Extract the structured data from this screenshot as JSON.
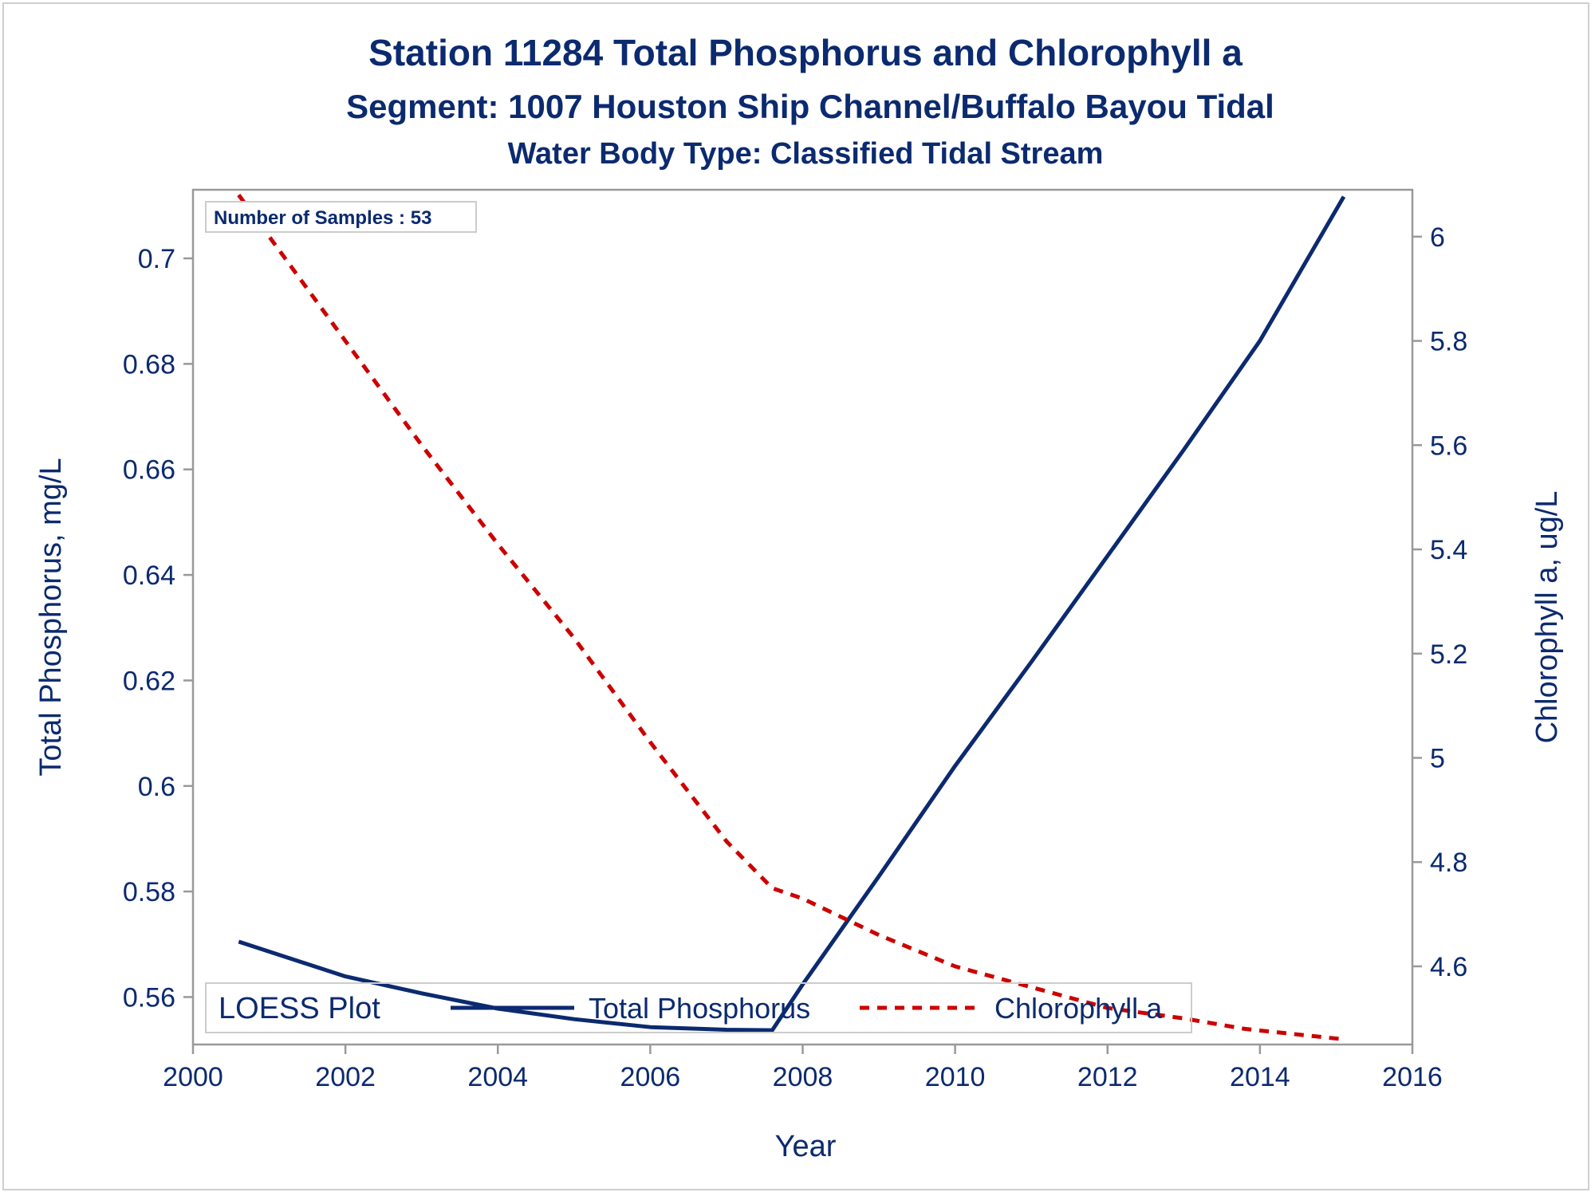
{
  "titles": {
    "line1": "Station 11284   Total Phosphorus and Chlorophyll a",
    "line2": "Segment: 1007  Houston Ship Channel/Buffalo Bayou Tidal",
    "line3": "Water Body Type: Classified Tidal Stream"
  },
  "inset": {
    "label": "Number of Samples : 53"
  },
  "legend": {
    "title": "LOESS Plot",
    "entries": [
      "Total Phosphorus",
      "Chlorophyll a"
    ]
  },
  "colors": {
    "text": "#0b2a6f",
    "phosphorus": "#0b2a6f",
    "chlorophyll": "#cc0000",
    "axis": "#999999"
  },
  "chart_data": {
    "type": "line",
    "xlabel": "Year",
    "ylabel": "Total Phosphorus, mg/L",
    "y2label": "Chlorophyll a, ug/L",
    "xlim": [
      2000,
      2016
    ],
    "ylim": [
      0.551,
      0.713
    ],
    "y2lim": [
      4.45,
      6.09
    ],
    "xticks": [
      "2000",
      "2002",
      "2004",
      "2006",
      "2008",
      "2010",
      "2012",
      "2014",
      "2016"
    ],
    "yticks": [
      "0.56",
      "0.58",
      "0.6",
      "0.62",
      "0.64",
      "0.66",
      "0.68",
      "0.7"
    ],
    "y2ticks": [
      "4.6",
      "4.8",
      "5",
      "5.2",
      "5.4",
      "5.6",
      "5.8",
      "6"
    ],
    "grid": false,
    "legend_position": "bottom-inside",
    "series": [
      {
        "name": "Total Phosphorus",
        "axis": "left",
        "style": "solid",
        "x": [
          2000.6,
          2002.0,
          2003.0,
          2004.0,
          2005.0,
          2006.0,
          2007.0,
          2007.6,
          2008.0,
          2009.0,
          2010.0,
          2011.0,
          2012.0,
          2013.0,
          2014.0,
          2015.1
        ],
        "values": [
          0.5705,
          0.5639,
          0.5607,
          0.5578,
          0.5558,
          0.5543,
          0.5538,
          0.5537,
          0.5624,
          0.5829,
          0.6038,
          0.6235,
          0.6436,
          0.6637,
          0.6844,
          0.7117
        ]
      },
      {
        "name": "Chlorophyll a",
        "axis": "right",
        "style": "dashed",
        "x": [
          2000.6,
          2001.0,
          2002.0,
          2003.0,
          2004.0,
          2005.0,
          2006.0,
          2007.0,
          2007.6,
          2008.0,
          2009.0,
          2010.0,
          2011.0,
          2012.0,
          2013.0,
          2013.8,
          2015.1
        ],
        "values": [
          6.08,
          6.0,
          5.8,
          5.6,
          5.41,
          5.23,
          5.03,
          4.84,
          4.75,
          4.73,
          4.66,
          4.6,
          4.56,
          4.52,
          4.5,
          4.48,
          4.46
        ]
      }
    ]
  }
}
